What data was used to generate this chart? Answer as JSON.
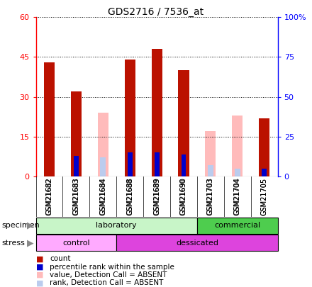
{
  "title": "GDS2716 / 7536_at",
  "samples": [
    "GSM21682",
    "GSM21683",
    "GSM21684",
    "GSM21688",
    "GSM21689",
    "GSM21690",
    "GSM21703",
    "GSM21704",
    "GSM21705"
  ],
  "count": [
    43,
    32,
    null,
    44,
    48,
    40,
    null,
    null,
    22
  ],
  "count_absent": [
    null,
    null,
    24,
    null,
    null,
    null,
    17,
    23,
    null
  ],
  "percentile": [
    null,
    13,
    null,
    15,
    15,
    14,
    null,
    null,
    5
  ],
  "percentile_absent": [
    null,
    null,
    12,
    null,
    null,
    null,
    7,
    5,
    null
  ],
  "ylim_left": [
    0,
    60
  ],
  "ylim_right": [
    0,
    100
  ],
  "yticks_left": [
    0,
    15,
    30,
    45,
    60
  ],
  "yticks_right": [
    0,
    25,
    50,
    75,
    100
  ],
  "yticklabels_left": [
    "0",
    "15",
    "30",
    "45",
    "60"
  ],
  "yticklabels_right": [
    "0",
    "25",
    "50",
    "75",
    "100%"
  ],
  "specimen_groups": [
    {
      "label": "laboratory",
      "start": 0,
      "end": 6,
      "color": "#C8F5C8"
    },
    {
      "label": "commercial",
      "start": 6,
      "end": 9,
      "color": "#4ECD4E"
    }
  ],
  "stress_groups": [
    {
      "label": "control",
      "start": 0,
      "end": 3,
      "color": "#FFAAFF"
    },
    {
      "label": "dessicated",
      "start": 3,
      "end": 9,
      "color": "#DD44DD"
    }
  ],
  "color_count": "#BB1100",
  "color_percentile": "#0000CC",
  "color_absent_value": "#FFBBBB",
  "color_absent_rank": "#BBCCEE",
  "bar_width": 0.4
}
